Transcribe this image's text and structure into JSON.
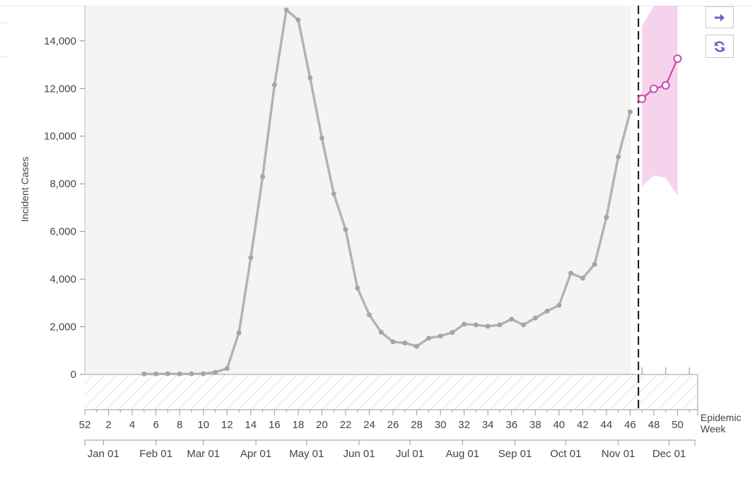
{
  "chart_data": {
    "type": "line",
    "ylabel": "Incident Cases",
    "xlabel": "Epidemic Week",
    "xlabel_lines": [
      "Epidemic",
      "Week"
    ],
    "ylim": [
      0,
      15300
    ],
    "yticks": [
      0,
      2000,
      4000,
      6000,
      8000,
      10000,
      12000,
      14000
    ],
    "ytick_labels": [
      "0",
      "2,000",
      "4,000",
      "6,000",
      "8,000",
      "10,000",
      "12,000",
      "14,000"
    ],
    "week_ticks": [
      {
        "i": 0,
        "label": "52"
      },
      {
        "i": 2,
        "label": "2"
      },
      {
        "i": 4,
        "label": "4"
      },
      {
        "i": 6,
        "label": "6"
      },
      {
        "i": 8,
        "label": "8"
      },
      {
        "i": 10,
        "label": "10"
      },
      {
        "i": 12,
        "label": "12"
      },
      {
        "i": 14,
        "label": "14"
      },
      {
        "i": 16,
        "label": "16"
      },
      {
        "i": 18,
        "label": "18"
      },
      {
        "i": 20,
        "label": "20"
      },
      {
        "i": 22,
        "label": "22"
      },
      {
        "i": 24,
        "label": "24"
      },
      {
        "i": 26,
        "label": "26"
      },
      {
        "i": 28,
        "label": "28"
      },
      {
        "i": 30,
        "label": "30"
      },
      {
        "i": 32,
        "label": "32"
      },
      {
        "i": 34,
        "label": "34"
      },
      {
        "i": 36,
        "label": "36"
      },
      {
        "i": 38,
        "label": "38"
      },
      {
        "i": 40,
        "label": "40"
      },
      {
        "i": 42,
        "label": "42"
      },
      {
        "i": 44,
        "label": "44"
      },
      {
        "i": 46,
        "label": "46"
      },
      {
        "i": 48,
        "label": "48"
      },
      {
        "i": 50,
        "label": "50"
      }
    ],
    "month_ticks": [
      {
        "i": 1.57,
        "label": "Jan 01"
      },
      {
        "i": 6.0,
        "label": "Feb 01"
      },
      {
        "i": 10.0,
        "label": "Mar 01"
      },
      {
        "i": 14.43,
        "label": "Apr 01"
      },
      {
        "i": 18.71,
        "label": "May 01"
      },
      {
        "i": 23.14,
        "label": "Jun 01"
      },
      {
        "i": 27.43,
        "label": "Jul 01"
      },
      {
        "i": 31.86,
        "label": "Aug 01"
      },
      {
        "i": 36.29,
        "label": "Sep 01"
      },
      {
        "i": 40.57,
        "label": "Oct 01"
      },
      {
        "i": 45.0,
        "label": "Nov 01"
      },
      {
        "i": 49.29,
        "label": "Dec 01"
      }
    ],
    "series": [
      {
        "role": "observed",
        "color": "#b3b3b3",
        "points": [
          [
            5,
            20
          ],
          [
            6,
            20
          ],
          [
            7,
            25
          ],
          [
            8,
            20
          ],
          [
            9,
            25
          ],
          [
            10,
            30
          ],
          [
            11,
            90
          ],
          [
            12,
            250
          ],
          [
            13,
            1750
          ],
          [
            14,
            4900
          ],
          [
            15,
            8300
          ],
          [
            16,
            12150
          ],
          [
            17,
            15300
          ],
          [
            18,
            14880
          ],
          [
            19,
            12450
          ],
          [
            20,
            9920
          ],
          [
            21,
            7580
          ],
          [
            22,
            6080
          ],
          [
            23,
            3620
          ],
          [
            24,
            2500
          ],
          [
            25,
            1770
          ],
          [
            26,
            1370
          ],
          [
            27,
            1320
          ],
          [
            28,
            1180
          ],
          [
            29,
            1520
          ],
          [
            30,
            1610
          ],
          [
            31,
            1760
          ],
          [
            32,
            2110
          ],
          [
            33,
            2080
          ],
          [
            34,
            2020
          ],
          [
            35,
            2080
          ],
          [
            36,
            2320
          ],
          [
            37,
            2080
          ],
          [
            38,
            2370
          ],
          [
            39,
            2660
          ],
          [
            40,
            2900
          ],
          [
            41,
            4250
          ],
          [
            42,
            4040
          ],
          [
            43,
            4620
          ],
          [
            44,
            6590
          ],
          [
            45,
            9130
          ],
          [
            46,
            11020
          ]
        ]
      },
      {
        "role": "forecast",
        "color": "#c94ab0",
        "points": [
          [
            47,
            11570
          ],
          [
            48,
            11990
          ],
          [
            49,
            12130
          ],
          [
            50,
            13250
          ]
        ],
        "upper": [
          [
            47,
            14600
          ],
          [
            48,
            15500
          ],
          [
            49,
            15500
          ],
          [
            50,
            15500
          ]
        ],
        "lower": [
          [
            47,
            7900
          ],
          [
            48,
            8350
          ],
          [
            49,
            8250
          ],
          [
            50,
            7500
          ]
        ]
      }
    ],
    "forecast_start": 46.7,
    "plot_end": 51.7,
    "observed_end": 46.0,
    "grid": false
  },
  "controls": {
    "next_icon": "arrow-right-icon",
    "refresh_icon": "refresh-icon",
    "icon_color": "#5b6bc0"
  }
}
